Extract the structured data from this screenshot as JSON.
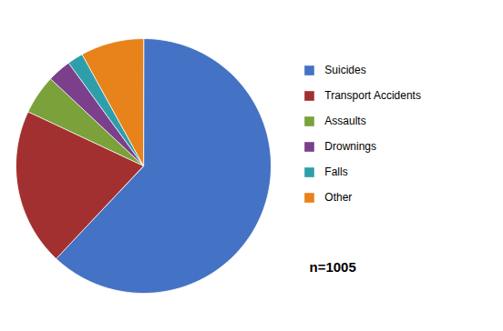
{
  "chart_data": {
    "type": "pie",
    "categories": [
      "Suicides",
      "Transport Accidents",
      "Assaults",
      "Drownings",
      "Falls",
      "Other"
    ],
    "values": [
      62,
      20,
      5,
      3,
      2,
      8
    ],
    "colors": [
      "#4472C4",
      "#A33030",
      "#7AA13A",
      "#7B3F8C",
      "#2E9FAA",
      "#E8821A"
    ],
    "annotation": "n=1005",
    "legend": "right"
  }
}
